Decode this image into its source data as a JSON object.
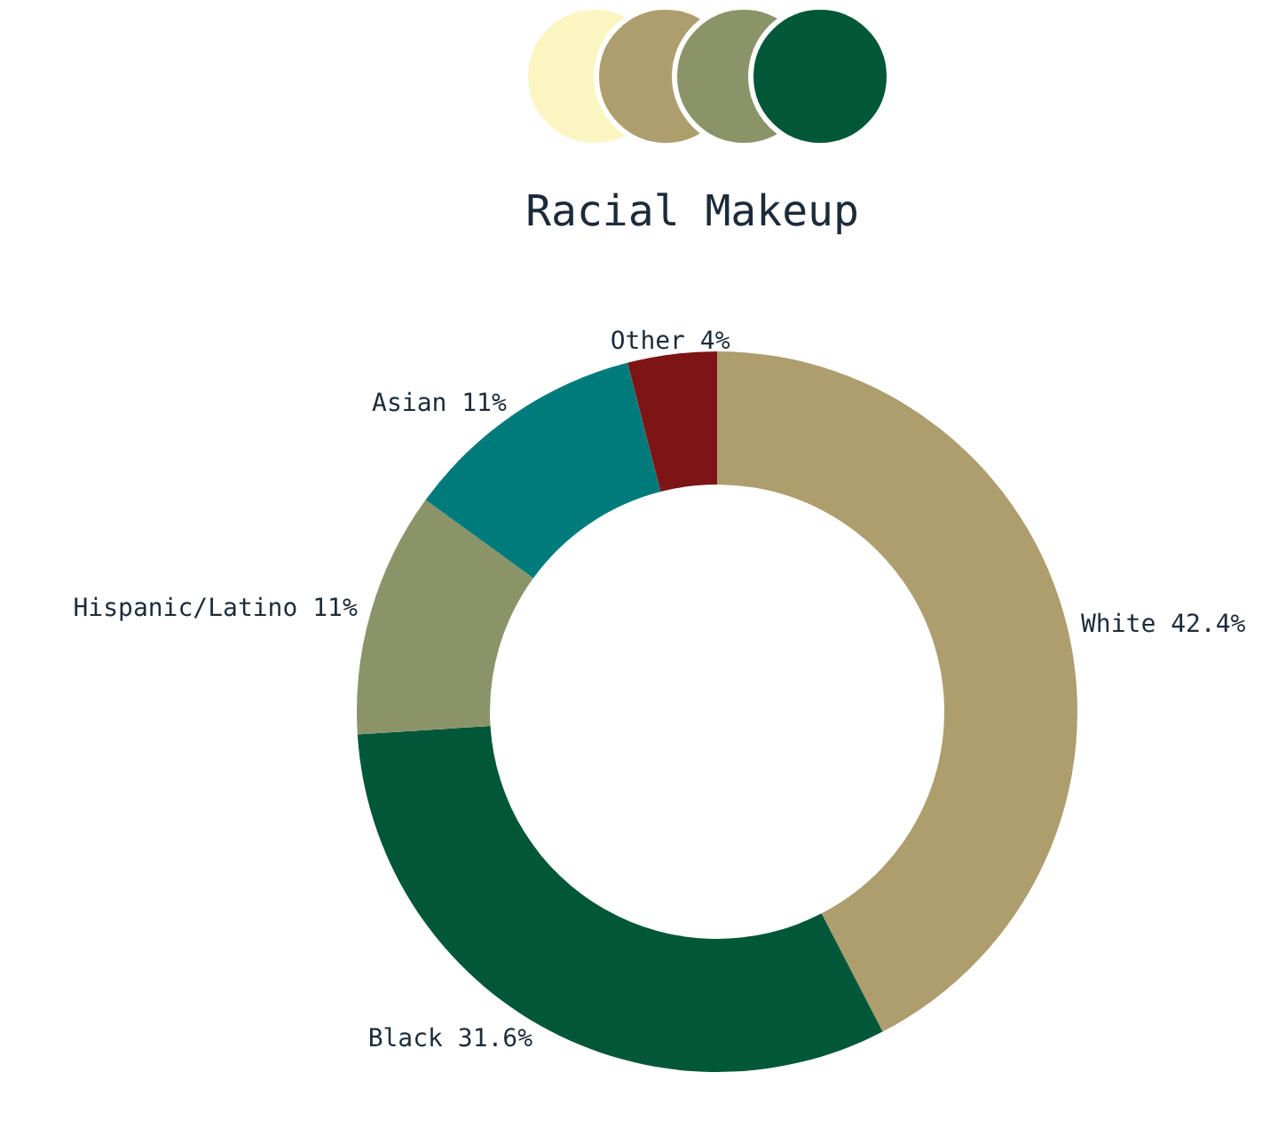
{
  "chart_data": {
    "type": "donut",
    "title": "Racial Makeup",
    "categories": [
      "White",
      "Black",
      "Hispanic/Latino",
      "Asian",
      "Other"
    ],
    "values": [
      42.4,
      31.6,
      11,
      11,
      4
    ],
    "value_labels": [
      "42.4%",
      "31.6%",
      "11%",
      "11%",
      "4%"
    ],
    "colors": [
      "#ae9e6e",
      "#005838",
      "#8b9469",
      "#007b7b",
      "#7d1416"
    ]
  }
}
